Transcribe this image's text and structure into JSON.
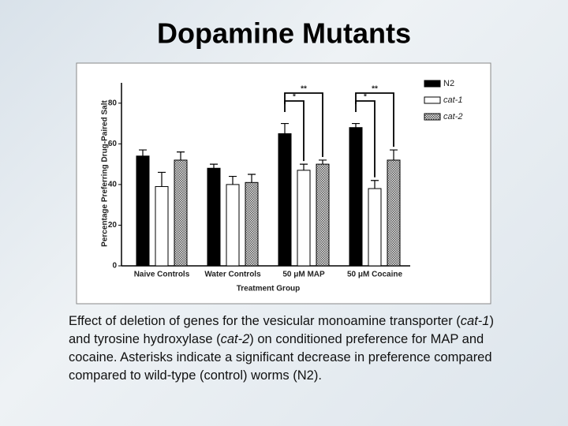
{
  "slide": {
    "title": "Dopamine Mutants",
    "caption": [
      {
        "text": "Effect of deletion of genes for the vesicular monoamine transporter ("
      },
      {
        "text": "cat-1",
        "italic": true
      },
      {
        "text": ") and tyrosine hydroxylase ("
      },
      {
        "text": "cat-2",
        "italic": true
      },
      {
        "text": ") on conditioned preference for MAP and cocaine. Asterisks indicate a significant decrease in preference compared compared to wild-type (control) worms (N2)."
      }
    ]
  },
  "chart_data": {
    "type": "bar",
    "ylabel": "Percentage Preferring Drug-Paired Salt",
    "xlabel": "Treatment Group",
    "categories": [
      "Naive Controls",
      "Water Controls",
      "50 μM MAP",
      "50 μM Cocaine"
    ],
    "series": [
      {
        "name": "N2",
        "color": "#000000",
        "values": [
          54,
          48,
          65,
          68
        ],
        "errors": [
          3,
          2,
          5,
          2
        ]
      },
      {
        "name": "cat-1",
        "color": "#ffffff",
        "italic": true,
        "values": [
          39,
          40,
          47,
          38
        ],
        "errors": [
          7,
          4,
          3,
          4
        ]
      },
      {
        "name": "cat-2",
        "color": "#8a8a8a",
        "italic": true,
        "pattern": "checkered",
        "values": [
          52,
          41,
          50,
          52
        ],
        "errors": [
          4,
          4,
          2,
          5
        ]
      }
    ],
    "annotations": [
      {
        "category": "50 μM MAP",
        "from": "N2",
        "to": "cat-2",
        "label": "**"
      },
      {
        "category": "50 μM MAP",
        "from": "N2",
        "to": "cat-1",
        "label": "*"
      },
      {
        "category": "50 μM Cocaine",
        "from": "N2",
        "to": "cat-2",
        "label": "**"
      },
      {
        "category": "50 μM Cocaine",
        "from": "N2",
        "to": "cat-1",
        "label": "*"
      }
    ],
    "ylim": [
      0,
      90
    ],
    "yticks": [
      0,
      20,
      40,
      60,
      80
    ],
    "legend": "upper right"
  }
}
